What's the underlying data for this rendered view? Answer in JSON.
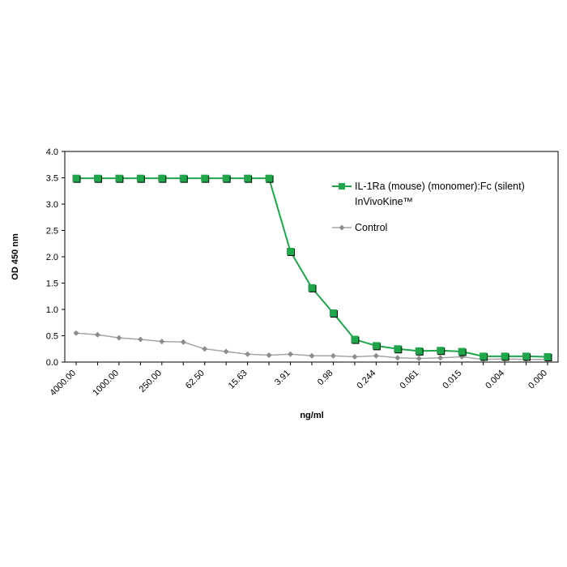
{
  "chart_data": {
    "type": "line",
    "title": "",
    "xlabel": "ng/ml",
    "ylabel": "OD  450 nm",
    "ylim": [
      0,
      4.0
    ],
    "yticks": [
      "0.0",
      "0.5",
      "1.0",
      "1.5",
      "2.0",
      "2.5",
      "3.0",
      "3.5",
      "4.0"
    ],
    "x": [
      "4000.00",
      "2000.00",
      "1000.00",
      "500.00",
      "250.00",
      "125.00",
      "62.50",
      "31.25",
      "15.63",
      "7.81",
      "3.91",
      "1.95",
      "0.98",
      "0.49",
      "0.244",
      "0.122",
      "0.061",
      "0.031",
      "0.015",
      "0.008",
      "0.004",
      "0.002",
      "0.000"
    ],
    "xticks_shown": [
      "4000.00",
      "1000.00",
      "250.00",
      "62.50",
      "15.63",
      "3.91",
      "0.98",
      "0.244",
      "0.061",
      "0.015",
      "0.004",
      "0.000"
    ],
    "grid": false,
    "legend_position": "right",
    "series": [
      {
        "name": "IL-1Ra (mouse) (monomer):Fc (silent) InVivoKine™",
        "name_lines": [
          "IL-1Ra (mouse) (monomer):Fc (silent)",
          "InVivoKine™"
        ],
        "color": "#1fa64a",
        "marker": "square",
        "values": [
          3.49,
          3.49,
          3.49,
          3.49,
          3.49,
          3.49,
          3.49,
          3.49,
          3.49,
          3.49,
          2.1,
          1.41,
          0.93,
          0.43,
          0.31,
          0.25,
          0.21,
          0.22,
          0.2,
          0.11,
          0.11,
          0.11,
          0.1
        ]
      },
      {
        "name": "Control",
        "name_lines": [
          "Control"
        ],
        "color": "#a6a6a6",
        "marker": "diamond",
        "values": [
          0.55,
          0.52,
          0.46,
          0.43,
          0.39,
          0.38,
          0.25,
          0.2,
          0.15,
          0.13,
          0.15,
          0.12,
          0.12,
          0.1,
          0.12,
          0.08,
          0.07,
          0.08,
          0.1,
          0.05,
          0.06,
          0.05,
          0.05
        ]
      }
    ]
  }
}
